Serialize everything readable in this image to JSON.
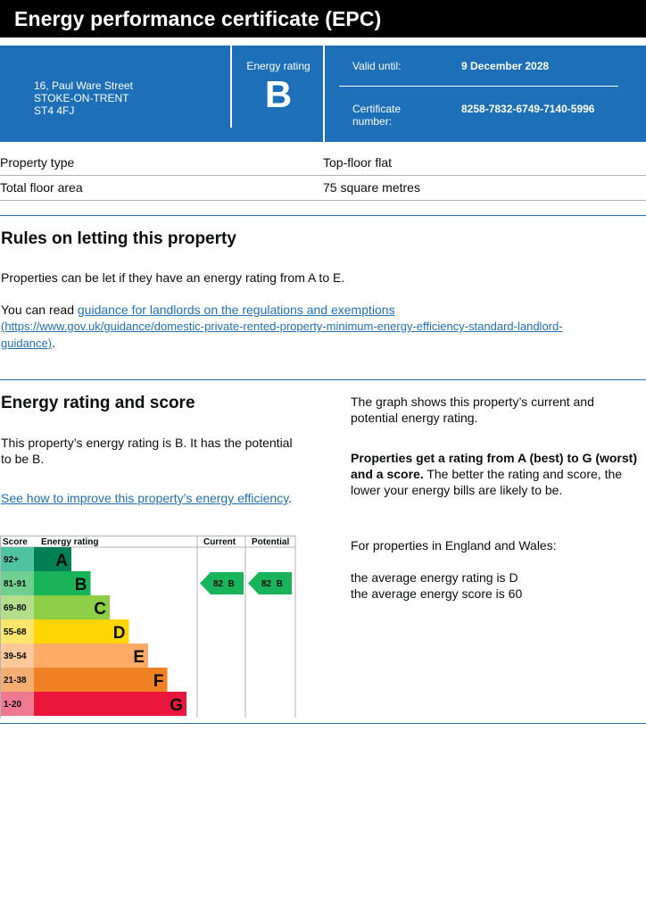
{
  "header": {
    "title": "Energy performance certificate (EPC)"
  },
  "summary": {
    "address": [
      "16, Paul Ware Street",
      "STOKE-ON-TRENT",
      "ST4 4FJ"
    ],
    "energy_rating_label": "Energy rating",
    "energy_rating": "B",
    "valid_until_label": "Valid until:",
    "valid_until": "9 December 2028",
    "certificate_label": [
      "Certificate",
      "number:"
    ],
    "certificate_number": "8258-7832-6749-7140-5996"
  },
  "property": [
    {
      "label": "Property type",
      "value": "Top-floor flat"
    },
    {
      "label": "Total floor area",
      "value": "75 square metres"
    }
  ],
  "letting": {
    "heading": "Rules on letting this property",
    "p1": "Properties can be let if they have an energy rating from A to E.",
    "p2_prefix": "You can read ",
    "p2_link": "guidance for landlords on the regulations and exemptions",
    "p2_url_line1": "(https://www.gov.uk/guidance/domestic-private-rented-property-minimum-energy-efficiency-standard-landlord-",
    "p2_url_line2": "guidance)",
    "p2_suffix": "."
  },
  "score_section": {
    "heading": "Energy rating and score",
    "p1": "This property’s energy rating is B. It has the potential to be B.",
    "link": "See how to improve this property’s energy efficiency",
    "link_suffix": ".",
    "right_p1": "The graph shows this property’s current and potential energy rating.",
    "right_p2_bold": "Properties get a rating from A (best) to G (worst) and a score.",
    "right_p2_rest": " The better the rating and score, the lower your energy bills are likely to be.",
    "right_p3": "For properties in England and Wales:",
    "right_p4": "the average energy rating is D",
    "right_p5": "the average energy score is 60"
  },
  "chart_data": {
    "type": "table",
    "columns": [
      "Score",
      "Energy rating",
      "Current",
      "Potential"
    ],
    "bands": [
      {
        "score": "92+",
        "letter": "A",
        "color": "#008054",
        "score_bg": "#4fc3a1"
      },
      {
        "score": "81-91",
        "letter": "B",
        "color": "#19b459",
        "score_bg": "#6fcf8f"
      },
      {
        "score": "69-80",
        "letter": "C",
        "color": "#8dce46",
        "score_bg": "#b5de8a"
      },
      {
        "score": "55-68",
        "letter": "D",
        "color": "#ffd500",
        "score_bg": "#ffe56b"
      },
      {
        "score": "39-54",
        "letter": "E",
        "color": "#fcaa65",
        "score_bg": "#fdc99a"
      },
      {
        "score": "21-38",
        "letter": "F",
        "color": "#ef8023",
        "score_bg": "#f5ad70"
      },
      {
        "score": "1-20",
        "letter": "G",
        "color": "#e9153b",
        "score_bg": "#f07891"
      }
    ],
    "current": {
      "score": 82,
      "letter": "B",
      "label": "82  B"
    },
    "potential": {
      "score": 82,
      "letter": "B",
      "label": "82  B"
    }
  }
}
